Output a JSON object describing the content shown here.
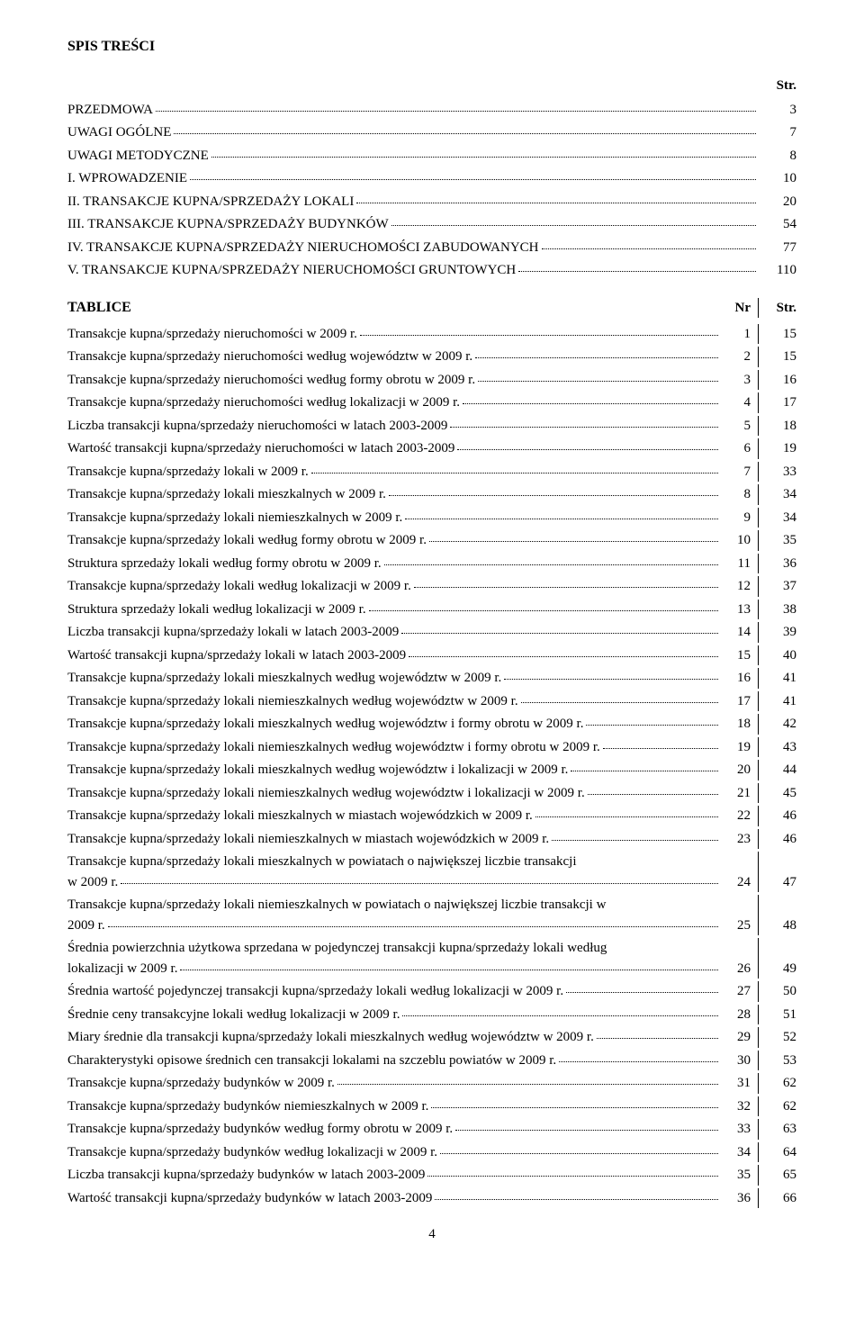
{
  "heading": "SPIS TREŚCI",
  "str_label": "Str.",
  "sections": [
    {
      "label": "PRZEDMOWA",
      "page": "3"
    },
    {
      "label": "UWAGI OGÓLNE",
      "page": "7"
    },
    {
      "label": "UWAGI METODYCZNE",
      "page": "8"
    },
    {
      "label": "I.    WPROWADZENIE",
      "page": "10"
    },
    {
      "label": "II.   TRANSAKCJE KUPNA/SPRZEDAŻY LOKALI",
      "page": "20"
    },
    {
      "label": "III.  TRANSAKCJE KUPNA/SPRZEDAŻY BUDYNKÓW",
      "page": "54"
    },
    {
      "label": "IV.  TRANSAKCJE KUPNA/SPRZEDAŻY NIERUCHOMOŚCI ZABUDOWANYCH",
      "page": "77"
    },
    {
      "label": "V.   TRANSAKCJE KUPNA/SPRZEDAŻY NIERUCHOMOŚCI GRUNTOWYCH",
      "page": "110"
    }
  ],
  "tablice_label": "TABLICE",
  "nr_label": "Nr",
  "str2_label": "Str.",
  "toc": [
    {
      "desc": "Transakcje kupna/sprzedaży nieruchomości w 2009 r.",
      "nr": "1",
      "page": "15"
    },
    {
      "desc": "Transakcje kupna/sprzedaży nieruchomości według województw w 2009 r.",
      "nr": "2",
      "page": "15"
    },
    {
      "desc": "Transakcje kupna/sprzedaży nieruchomości według formy obrotu w 2009 r.",
      "nr": "3",
      "page": "16"
    },
    {
      "desc": "Transakcje kupna/sprzedaży nieruchomości według lokalizacji w 2009 r.",
      "nr": "4",
      "page": "17"
    },
    {
      "desc": "Liczba transakcji kupna/sprzedaży nieruchomości w latach 2003-2009",
      "nr": "5",
      "page": "18"
    },
    {
      "desc": "Wartość transakcji kupna/sprzedaży nieruchomości w latach 2003-2009",
      "nr": "6",
      "page": "19"
    },
    {
      "desc": "Transakcje kupna/sprzedaży lokali w 2009 r.",
      "nr": "7",
      "page": "33"
    },
    {
      "desc": "Transakcje kupna/sprzedaży lokali mieszkalnych w 2009 r.",
      "nr": "8",
      "page": "34"
    },
    {
      "desc": "Transakcje kupna/sprzedaży lokali niemieszkalnych w 2009 r.",
      "nr": "9",
      "page": "34"
    },
    {
      "desc": "Transakcje kupna/sprzedaży lokali według formy obrotu w 2009 r.",
      "nr": "10",
      "page": "35"
    },
    {
      "desc": "Struktura sprzedaży lokali według formy obrotu w 2009 r.",
      "nr": "11",
      "page": "36"
    },
    {
      "desc": "Transakcje kupna/sprzedaży lokali według lokalizacji w 2009 r.",
      "nr": "12",
      "page": "37"
    },
    {
      "desc": "Struktura sprzedaży lokali według lokalizacji w 2009 r.",
      "nr": "13",
      "page": "38"
    },
    {
      "desc": "Liczba transakcji kupna/sprzedaży lokali w latach 2003-2009",
      "nr": "14",
      "page": "39"
    },
    {
      "desc": "Wartość transakcji kupna/sprzedaży lokali w latach 2003-2009",
      "nr": "15",
      "page": "40"
    },
    {
      "desc": "Transakcje kupna/sprzedaży lokali mieszkalnych według województw w 2009 r.",
      "nr": "16",
      "page": "41"
    },
    {
      "desc": "Transakcje kupna/sprzedaży lokali niemieszkalnych według województw w 2009 r.",
      "nr": "17",
      "page": "41"
    },
    {
      "desc": "Transakcje kupna/sprzedaży lokali mieszkalnych według województw i formy obrotu w 2009 r.",
      "nr": "18",
      "page": "42"
    },
    {
      "desc": "Transakcje kupna/sprzedaży lokali niemieszkalnych według województw i formy obrotu w 2009 r.",
      "nr": "19",
      "page": "43"
    },
    {
      "desc": "Transakcje kupna/sprzedaży lokali mieszkalnych według województw i lokalizacji w 2009 r.",
      "nr": "20",
      "page": "44"
    },
    {
      "desc": "Transakcje kupna/sprzedaży lokali niemieszkalnych według województw i lokalizacji w 2009 r.",
      "nr": "21",
      "page": "45"
    },
    {
      "desc": "Transakcje kupna/sprzedaży lokali mieszkalnych w miastach wojewódzkich w 2009 r.",
      "nr": "22",
      "page": "46"
    },
    {
      "desc": "Transakcje kupna/sprzedaży lokali niemieszkalnych w miastach wojewódzkich w 2009 r.",
      "nr": "23",
      "page": "46"
    },
    {
      "desc_lines": [
        "Transakcje kupna/sprzedaży lokali mieszkalnych w powiatach o największej liczbie transakcji",
        "w 2009 r."
      ],
      "nr": "24",
      "page": "47"
    },
    {
      "desc_lines": [
        "Transakcje kupna/sprzedaży lokali niemieszkalnych w powiatach o największej liczbie transakcji w",
        "2009 r."
      ],
      "nr": "25",
      "page": "48"
    },
    {
      "desc_lines": [
        "Średnia powierzchnia użytkowa sprzedana w pojedynczej transakcji kupna/sprzedaży lokali według",
        "lokalizacji w 2009 r."
      ],
      "nr": "26",
      "page": "49"
    },
    {
      "desc": "Średnia wartość pojedynczej transakcji kupna/sprzedaży lokali według lokalizacji w 2009 r.",
      "nr": "27",
      "page": "50"
    },
    {
      "desc": "Średnie ceny transakcyjne lokali według lokalizacji w 2009 r.",
      "nr": "28",
      "page": "51"
    },
    {
      "desc": "Miary średnie dla transakcji kupna/sprzedaży lokali mieszkalnych według województw w 2009 r.",
      "nr": "29",
      "page": "52"
    },
    {
      "desc": "Charakterystyki opisowe średnich cen transakcji lokalami na szczeblu powiatów w 2009 r.",
      "nr": "30",
      "page": "53"
    },
    {
      "desc": "Transakcje kupna/sprzedaży budynków w 2009 r.",
      "nr": "31",
      "page": "62"
    },
    {
      "desc": "Transakcje kupna/sprzedaży budynków niemieszkalnych w 2009 r.",
      "nr": "32",
      "page": "62"
    },
    {
      "desc": "Transakcje kupna/sprzedaży budynków według formy obrotu w 2009 r.",
      "nr": "33",
      "page": "63"
    },
    {
      "desc": "Transakcje kupna/sprzedaży budynków według lokalizacji w 2009 r.",
      "nr": "34",
      "page": "64"
    },
    {
      "desc": "Liczba transakcji kupna/sprzedaży budynków w latach 2003-2009",
      "nr": "35",
      "page": "65"
    },
    {
      "desc": "Wartość transakcji kupna/sprzedaży budynków w latach 2003-2009",
      "nr": "36",
      "page": "66"
    }
  ],
  "page_number": "4"
}
